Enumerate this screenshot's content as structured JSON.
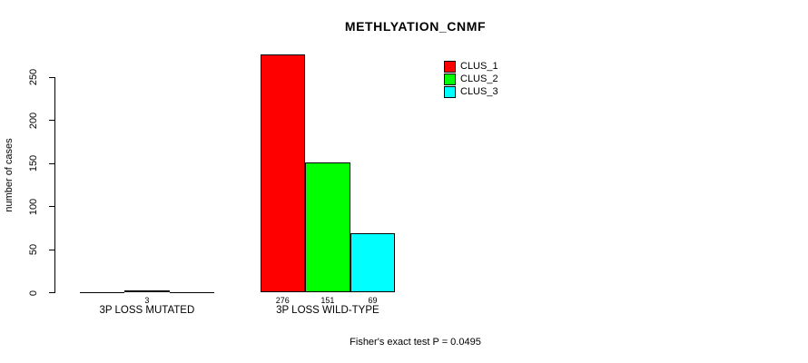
{
  "title": "METHLYATION_CNMF",
  "annotation": "Fisher's exact test P = 0.0495",
  "chart_data": {
    "type": "bar",
    "title": "METHLYATION_CNMF",
    "xlabel": "",
    "ylabel": "number of cases",
    "yticks": [
      0,
      50,
      100,
      150,
      200,
      250
    ],
    "ylim": [
      0,
      290
    ],
    "grid": false,
    "legend_position": "top-right",
    "categories": [
      "3P LOSS MUTATED",
      "3P LOSS WILD-TYPE"
    ],
    "series": [
      {
        "name": "CLUS_1",
        "color": "#ff0000",
        "values": [
          0,
          276
        ]
      },
      {
        "name": "CLUS_2",
        "color": "#00ff00",
        "values": [
          3,
          151
        ]
      },
      {
        "name": "CLUS_3",
        "color": "#00ffff",
        "values": [
          0,
          69
        ]
      }
    ],
    "bar_value_labels": [
      "3",
      "276",
      "151",
      "69"
    ],
    "annotation": "Fisher's exact test P = 0.0495",
    "colors": {
      "axis": "#000000",
      "text": "#000000",
      "background": "#ffffff"
    }
  }
}
